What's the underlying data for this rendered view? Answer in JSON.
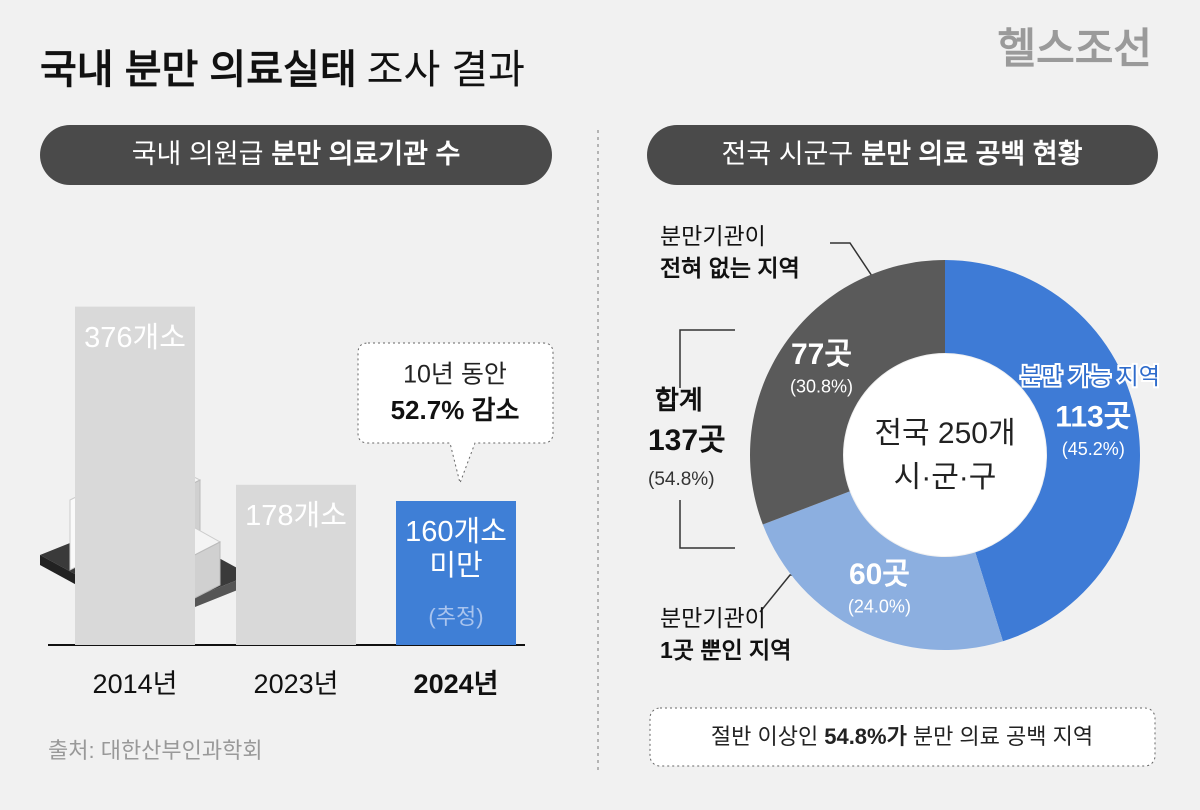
{
  "header": {
    "title": [
      "국내 분만 의료실태",
      "조사 결과"
    ],
    "brand": "헬스조선",
    "source": "출처: 대한산부인과학회"
  },
  "chart_data": [
    {
      "type": "bar",
      "title": [
        "국내 의원급",
        "분만 의료기관 수"
      ],
      "categories": [
        "2014년",
        "2023년",
        "2024년"
      ],
      "values": [
        376,
        178,
        160
      ],
      "value_labels": [
        "376개소",
        "178개소",
        "160개소 미만"
      ],
      "colors": [
        "#d9d9d9",
        "#d9d9d9",
        "#3f7fd6"
      ],
      "estimate_label": "(추정)",
      "callout": [
        "10년 동안",
        "52.7% 감소"
      ]
    },
    {
      "type": "donut",
      "title": [
        "전국 시군구",
        "분만 의료 공백 현황"
      ],
      "center_label": [
        "전국 250개",
        "시·군·구"
      ],
      "categories": [
        [
          "분만 가능 지역"
        ],
        [
          "분만기관이",
          "1곳 뿐인 지역"
        ],
        [
          "분만기관이",
          "전혀 없는 지역"
        ]
      ],
      "values": [
        113,
        60,
        77
      ],
      "value_labels": [
        "113곳",
        "60곳",
        "77곳"
      ],
      "shares": [
        45.2,
        24.0,
        30.8
      ],
      "share_labels": [
        "(45.2%)",
        "(24.0%)",
        "(30.8%)"
      ],
      "colors": [
        "#3e7bd6",
        "#8cafe0",
        "#5a5a5a"
      ],
      "total": {
        "label": "합계",
        "value": 137,
        "value_label": "137곳",
        "share": 54.8,
        "share_label": "(54.8%)"
      },
      "note": [
        "절반 이상인",
        "54.8%가",
        "분만 의료 공백 지역"
      ]
    }
  ]
}
